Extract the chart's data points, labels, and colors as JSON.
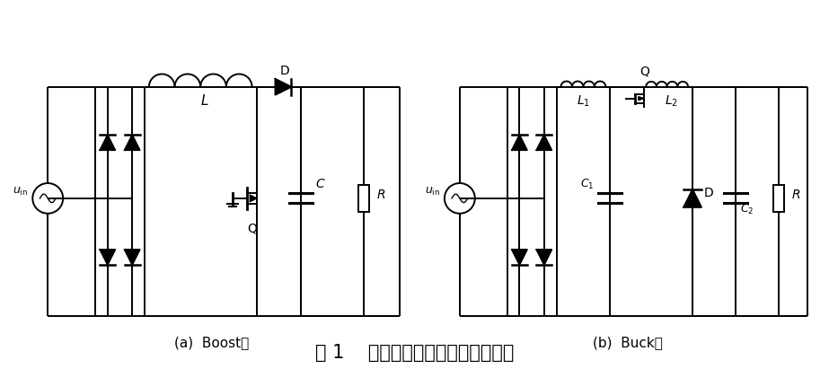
{
  "title": "图 1    传统的单相功率因数校正电路",
  "subtitle_a": "(a)  Boost型",
  "subtitle_b": "(b)  Buck型",
  "bg_color": "#ffffff",
  "line_color": "#000000",
  "title_fontsize": 15,
  "subtitle_fontsize": 11
}
